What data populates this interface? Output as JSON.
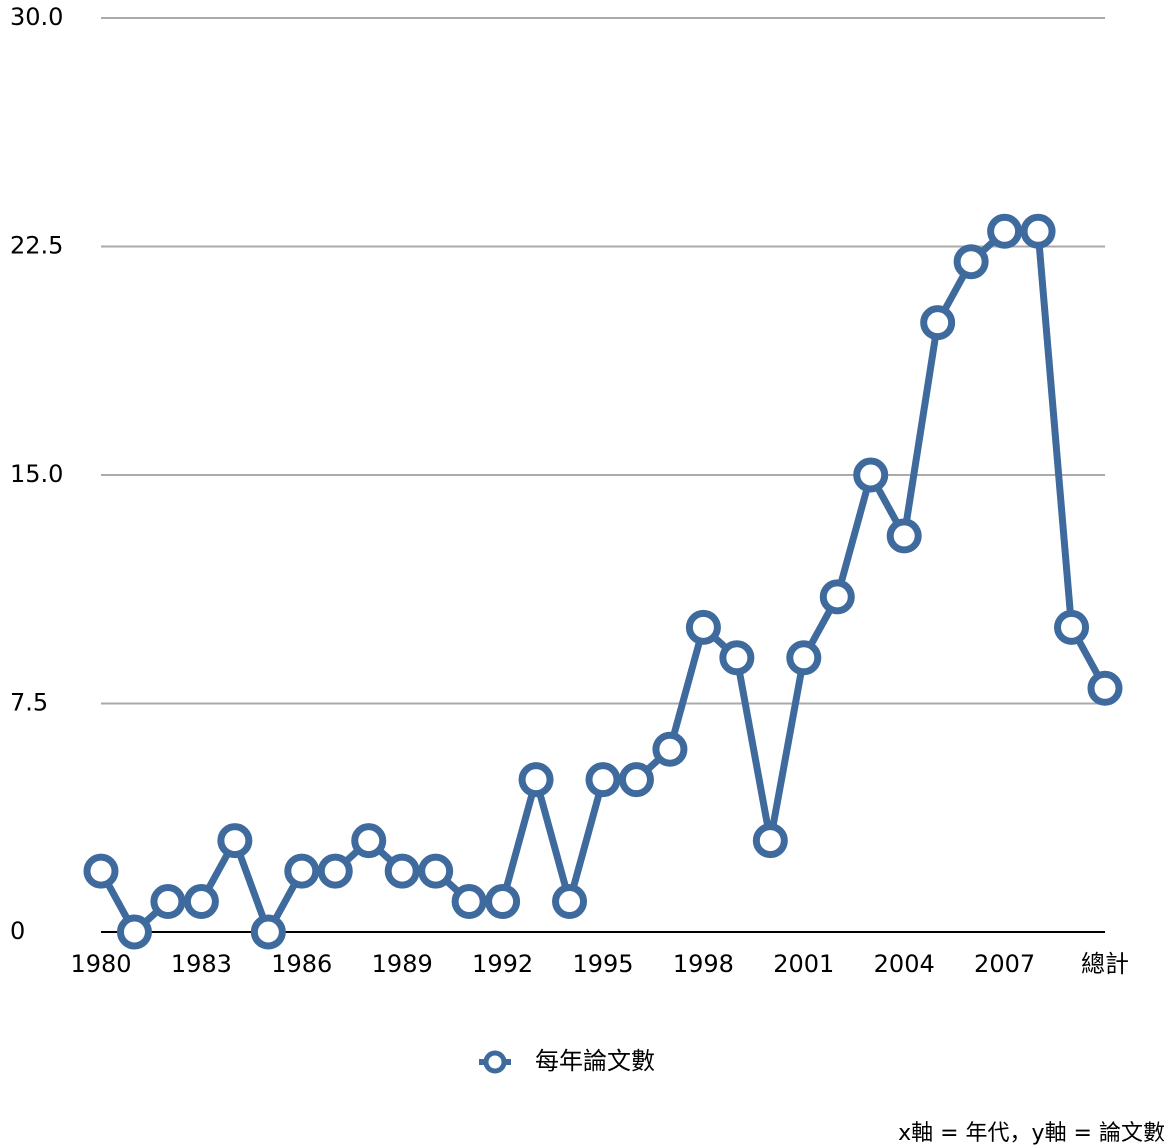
{
  "chart_data": {
    "type": "line",
    "categories": [
      "1980",
      null,
      null,
      "1983",
      null,
      null,
      "1986",
      null,
      null,
      "1989",
      null,
      null,
      "1992",
      null,
      null,
      "1995",
      null,
      null,
      "1998",
      null,
      null,
      "2001",
      null,
      null,
      "2004",
      null,
      null,
      "2007",
      null,
      null,
      "總計"
    ],
    "series": [
      {
        "name": "每年論文數",
        "color": "#3e6a9d",
        "values": [
          2,
          0,
          1,
          1,
          3,
          0,
          2,
          2,
          3,
          2,
          2,
          1,
          1,
          5,
          1,
          5,
          5,
          6,
          10,
          9,
          3,
          9,
          11,
          15,
          13,
          20,
          22,
          23,
          23,
          10,
          8
        ]
      }
    ],
    "ylim": [
      0,
      30
    ],
    "yticks": [
      0,
      7.5,
      {
        "value": 15,
        "label": "15.0"
      },
      22.5,
      {
        "value": 30,
        "label": "30.0"
      }
    ],
    "grid": true,
    "legend": "bottom",
    "annotation": "x軸 = 年代，y軸 = 論文數"
  }
}
